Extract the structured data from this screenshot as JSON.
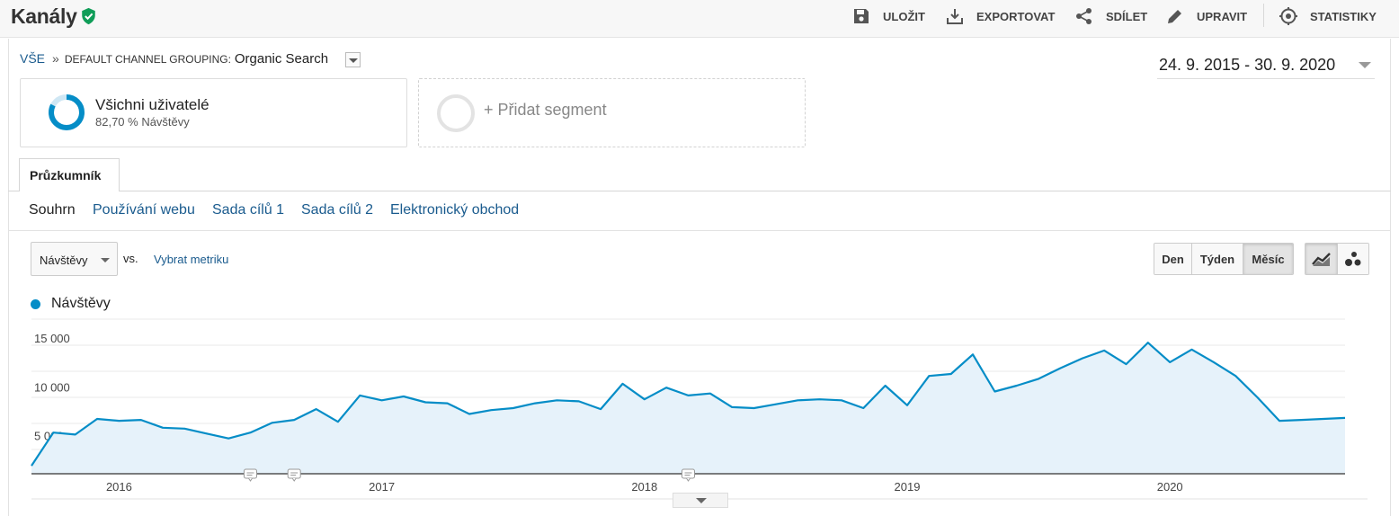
{
  "header": {
    "title": "Kanály",
    "actions": [
      {
        "label": "ULOŽIT",
        "icon": "save-icon"
      },
      {
        "label": "EXPORTOVAT",
        "icon": "export-icon"
      },
      {
        "label": "SDÍLET",
        "icon": "share-icon"
      },
      {
        "label": "UPRAVIT",
        "icon": "edit-icon"
      },
      {
        "label": "STATISTIKY",
        "icon": "insights-icon"
      }
    ]
  },
  "breadcrumb": {
    "root": "VŠE",
    "separator": "»",
    "dimension": "DEFAULT CHANNEL GROUPING:",
    "value": "Organic Search"
  },
  "date_range": "24. 9. 2015 - 30. 9. 2020",
  "segments": {
    "active": {
      "title": "Všichni uživatelé",
      "subtitle": "82,70 % Návštěvy"
    },
    "add_label": "+ Přidat segment"
  },
  "tabs": {
    "explorer": "Průzkumník",
    "subtabs": [
      "Souhrn",
      "Používání webu",
      "Sada cílů 1",
      "Sada cílů 2",
      "Elektronický obchod"
    ]
  },
  "controls": {
    "metric": "Návštěvy",
    "vs": "vs.",
    "pick_metric": "Vybrat metriku",
    "granularity": [
      "Den",
      "Týden",
      "Měsíc"
    ],
    "granularity_selected": "Měsíc",
    "chart_modes": [
      "line-chart-icon",
      "motion-chart-icon"
    ]
  },
  "colors": {
    "series": "#058dc7",
    "fill": "#e6f2fa",
    "link": "#1a5b8e",
    "verified": "#0f9d58"
  },
  "chart_data": {
    "type": "area",
    "legend": [
      "Návštěvy"
    ],
    "y_ticks": [
      "15 000",
      "10 000",
      "5 000"
    ],
    "ylim": [
      0,
      15000
    ],
    "x_labels": [
      "2016",
      "2017",
      "2018",
      "2019",
      "2020"
    ],
    "series": [
      {
        "name": "Návštěvy",
        "x": [
          "2015-09",
          "2015-10",
          "2015-11",
          "2015-12",
          "2016-01",
          "2016-02",
          "2016-03",
          "2016-04",
          "2016-05",
          "2016-06",
          "2016-07",
          "2016-08",
          "2016-09",
          "2016-10",
          "2016-11",
          "2016-12",
          "2017-01",
          "2017-02",
          "2017-03",
          "2017-04",
          "2017-05",
          "2017-06",
          "2017-07",
          "2017-08",
          "2017-09",
          "2017-10",
          "2017-11",
          "2017-12",
          "2018-01",
          "2018-02",
          "2018-03",
          "2018-04",
          "2018-05",
          "2018-06",
          "2018-07",
          "2018-08",
          "2018-09",
          "2018-10",
          "2018-11",
          "2018-12",
          "2019-01",
          "2019-02",
          "2019-03",
          "2019-04",
          "2019-05",
          "2019-06",
          "2019-07",
          "2019-08",
          "2019-09",
          "2019-10",
          "2019-11",
          "2019-12",
          "2020-01",
          "2020-02",
          "2020-03",
          "2020-04",
          "2020-05",
          "2020-06",
          "2020-07",
          "2020-08",
          "2020-09"
        ],
        "values": [
          1000,
          4400,
          4200,
          5800,
          5600,
          5700,
          4900,
          4800,
          4300,
          3800,
          4400,
          5400,
          5700,
          6800,
          5500,
          8200,
          7700,
          8100,
          7500,
          7400,
          6300,
          6700,
          6900,
          7400,
          7700,
          7600,
          6800,
          9400,
          7800,
          9000,
          8200,
          8400,
          7000,
          6900,
          7300,
          7700,
          7800,
          7700,
          6900,
          9200,
          7200,
          10200,
          10400,
          12400,
          8600,
          9200,
          9900,
          11000,
          12000,
          12800,
          11400,
          13600,
          11600,
          12900,
          11600,
          10200,
          8000,
          5600,
          5700,
          5800,
          5900
        ]
      }
    ],
    "annotations": [
      "2016-07",
      "2016-09",
      "2018-03"
    ],
    "grid": true
  }
}
